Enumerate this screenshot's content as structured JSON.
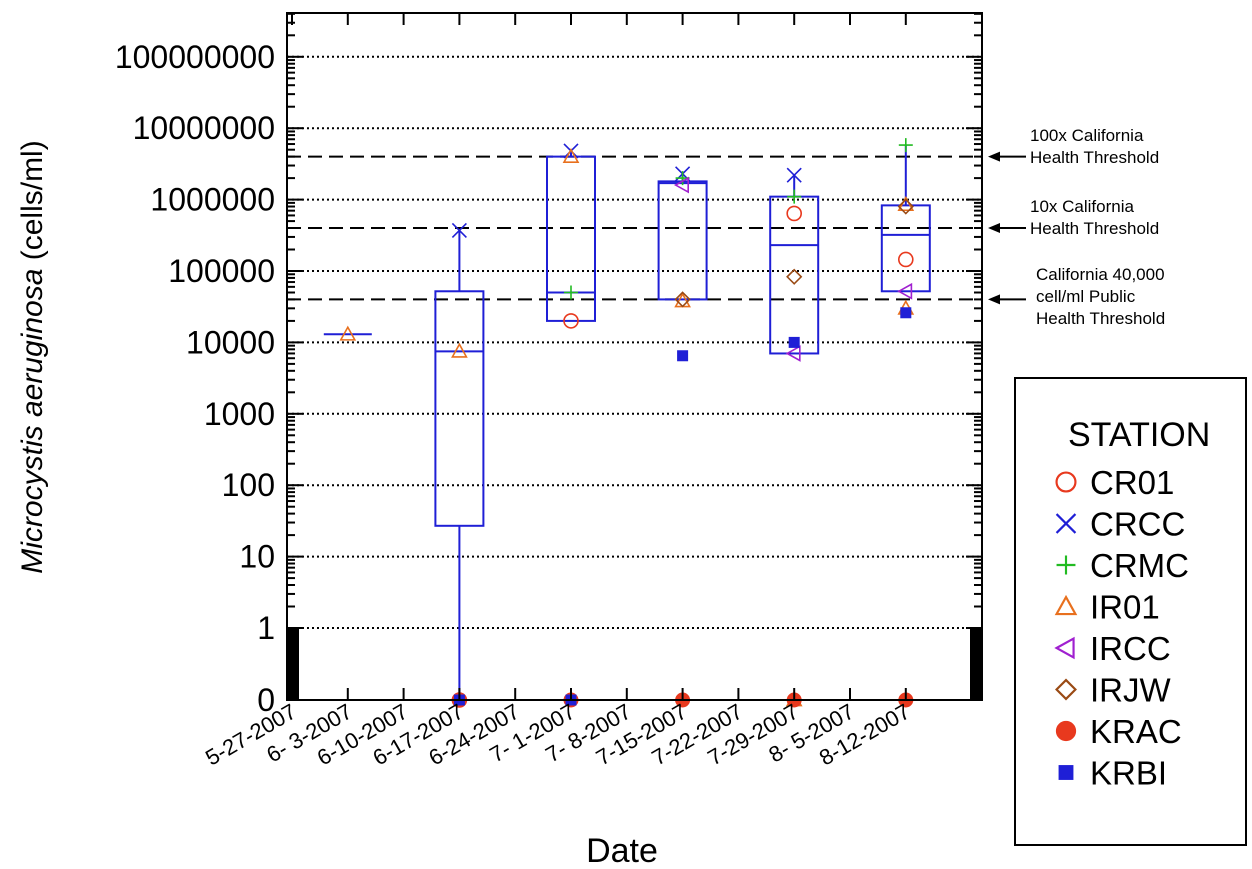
{
  "chart_data": {
    "type": "box",
    "title": "",
    "xlabel": "Date",
    "ylabel_italic": "Microcystis aeruginosa",
    "ylabel_units": " (cells/ml)",
    "y_scale": "log",
    "y_ticks": [
      {
        "value": 0,
        "label": "0"
      },
      {
        "value": 1,
        "label": "1"
      },
      {
        "value": 10,
        "label": "10"
      },
      {
        "value": 100,
        "label": "100"
      },
      {
        "value": 1000,
        "label": "1000"
      },
      {
        "value": 10000,
        "label": "10000"
      },
      {
        "value": 100000,
        "label": "100000"
      },
      {
        "value": 1000000,
        "label": "1000000"
      },
      {
        "value": 10000000,
        "label": "10000000"
      },
      {
        "value": 100000000,
        "label": "100000000"
      }
    ],
    "x_ticks": [
      "5-27-2007",
      "6- 3-2007",
      "6-10-2007",
      "6-17-2007",
      "6-24-2007",
      "7- 1-2007",
      "7- 8-2007",
      "7-15-2007",
      "7-22-2007",
      "7-29-2007",
      "8- 5-2007",
      "8-12-2007"
    ],
    "grid": "horizontal-dotted",
    "thresholds": [
      {
        "value": 4000000,
        "label": [
          "100x California",
          "Health Threshold"
        ]
      },
      {
        "value": 400000,
        "label": [
          "10x California",
          "Health Threshold"
        ]
      },
      {
        "value": 40000,
        "label": [
          "California  40,000",
          "cell/ml Public",
          "Health Threshold"
        ]
      }
    ],
    "boxes": [
      {
        "date": "6-3-2007",
        "median": 13000
      },
      {
        "date": "6-17-2007",
        "q1": 27,
        "median": 7500,
        "q3": 52000,
        "whisker_low": 0,
        "whisker_high": 370000
      },
      {
        "date": "7-1-2007",
        "q1": 20000,
        "median": 50000,
        "q3": 4000000,
        "whisker_high": 4600000
      },
      {
        "date": "7-15-2007",
        "q1": 40000,
        "median": 1700000,
        "q3": 1800000,
        "whisker_high": 2200000
      },
      {
        "date": "7-29-2007",
        "q1": 7000,
        "median": 230000,
        "q3": 1100000,
        "whisker_high": 2200000
      },
      {
        "date": "8-12-2007",
        "q1": 52000,
        "median": 320000,
        "q3": 830000,
        "whisker_high": 5800000
      }
    ],
    "series": [
      {
        "name": "CR01",
        "marker": "open-circle",
        "color": "#e8391e",
        "points": [
          {
            "date": "6-17-2007",
            "y": 0
          },
          {
            "date": "7-1-2007",
            "y": 20000
          },
          {
            "date": "7-29-2007",
            "y": 640000
          },
          {
            "date": "8-12-2007",
            "y": 145000
          }
        ]
      },
      {
        "name": "CRCC",
        "marker": "x",
        "color": "#1f1fd6",
        "points": [
          {
            "date": "6-17-2007",
            "y": 370000
          },
          {
            "date": "7-1-2007",
            "y": 4800000
          },
          {
            "date": "7-15-2007",
            "y": 2300000
          },
          {
            "date": "7-29-2007",
            "y": 2200000
          }
        ]
      },
      {
        "name": "CRMC",
        "marker": "plus",
        "color": "#22bb22",
        "points": [
          {
            "date": "7-1-2007",
            "y": 50000
          },
          {
            "date": "7-15-2007",
            "y": 2000000
          },
          {
            "date": "7-29-2007",
            "y": 1100000
          },
          {
            "date": "8-12-2007",
            "y": 5800000
          }
        ]
      },
      {
        "name": "IR01",
        "marker": "open-triangle",
        "color": "#e8701e",
        "points": [
          {
            "date": "6-3-2007",
            "y": 13000
          },
          {
            "date": "6-17-2007",
            "y": 7500
          },
          {
            "date": "7-1-2007",
            "y": 4000000
          },
          {
            "date": "7-15-2007",
            "y": 38000
          },
          {
            "date": "7-29-2007",
            "y": 0
          },
          {
            "date": "8-12-2007",
            "y": 850000
          },
          {
            "date": "8-12-2007",
            "y": 30000
          }
        ]
      },
      {
        "name": "IRCC",
        "marker": "open-left-triangle",
        "color": "#a020d0",
        "points": [
          {
            "date": "7-15-2007",
            "y": 1600000
          },
          {
            "date": "7-29-2007",
            "y": 7000
          },
          {
            "date": "8-12-2007",
            "y": 52000
          }
        ]
      },
      {
        "name": "IRJW",
        "marker": "open-diamond",
        "color": "#9a4a14",
        "points": [
          {
            "date": "7-15-2007",
            "y": 40000
          },
          {
            "date": "7-29-2007",
            "y": 83000
          },
          {
            "date": "8-12-2007",
            "y": 800000
          }
        ]
      },
      {
        "name": "KRAC",
        "marker": "filled-circle",
        "color": "#e8391e",
        "points": [
          {
            "date": "6-17-2007",
            "y": 0
          },
          {
            "date": "7-1-2007",
            "y": 0
          },
          {
            "date": "7-15-2007",
            "y": 0
          },
          {
            "date": "7-29-2007",
            "y": 0
          },
          {
            "date": "8-12-2007",
            "y": 0
          }
        ]
      },
      {
        "name": "KRBI",
        "marker": "filled-square",
        "color": "#1f1fd6",
        "points": [
          {
            "date": "6-17-2007",
            "y": 0
          },
          {
            "date": "7-1-2007",
            "y": 0
          },
          {
            "date": "7-15-2007",
            "y": 6500
          },
          {
            "date": "7-29-2007",
            "y": 10000
          },
          {
            "date": "8-12-2007",
            "y": 26000
          }
        ]
      }
    ],
    "legend": {
      "title": "STATION",
      "placement": "right"
    },
    "box_color": "#1f1fd6"
  }
}
